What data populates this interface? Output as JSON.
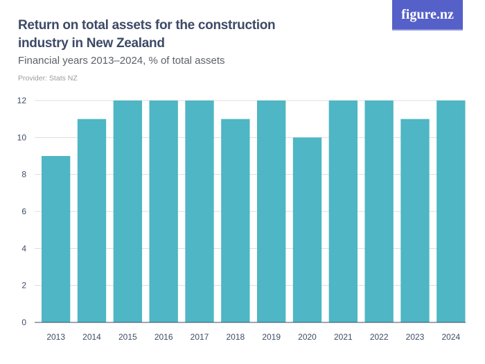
{
  "logo": "figure.nz",
  "chart_data": {
    "type": "bar",
    "title": "Return on total assets for the construction industry in New Zealand",
    "subtitle": "Financial years 2013–2024, % of total assets",
    "provider": "Provider: Stats NZ",
    "categories": [
      "2013",
      "2014",
      "2015",
      "2016",
      "2017",
      "2018",
      "2019",
      "2020",
      "2021",
      "2022",
      "2023",
      "2024"
    ],
    "values": [
      9,
      11,
      12,
      12,
      12,
      11,
      12,
      10,
      12,
      12,
      11,
      12
    ],
    "yticks": [
      0,
      2,
      4,
      6,
      8,
      10,
      12
    ],
    "ylim": [
      0,
      12
    ],
    "xlabel": "",
    "ylabel": "",
    "grid": true,
    "bar_color": "#4eb6c4"
  }
}
